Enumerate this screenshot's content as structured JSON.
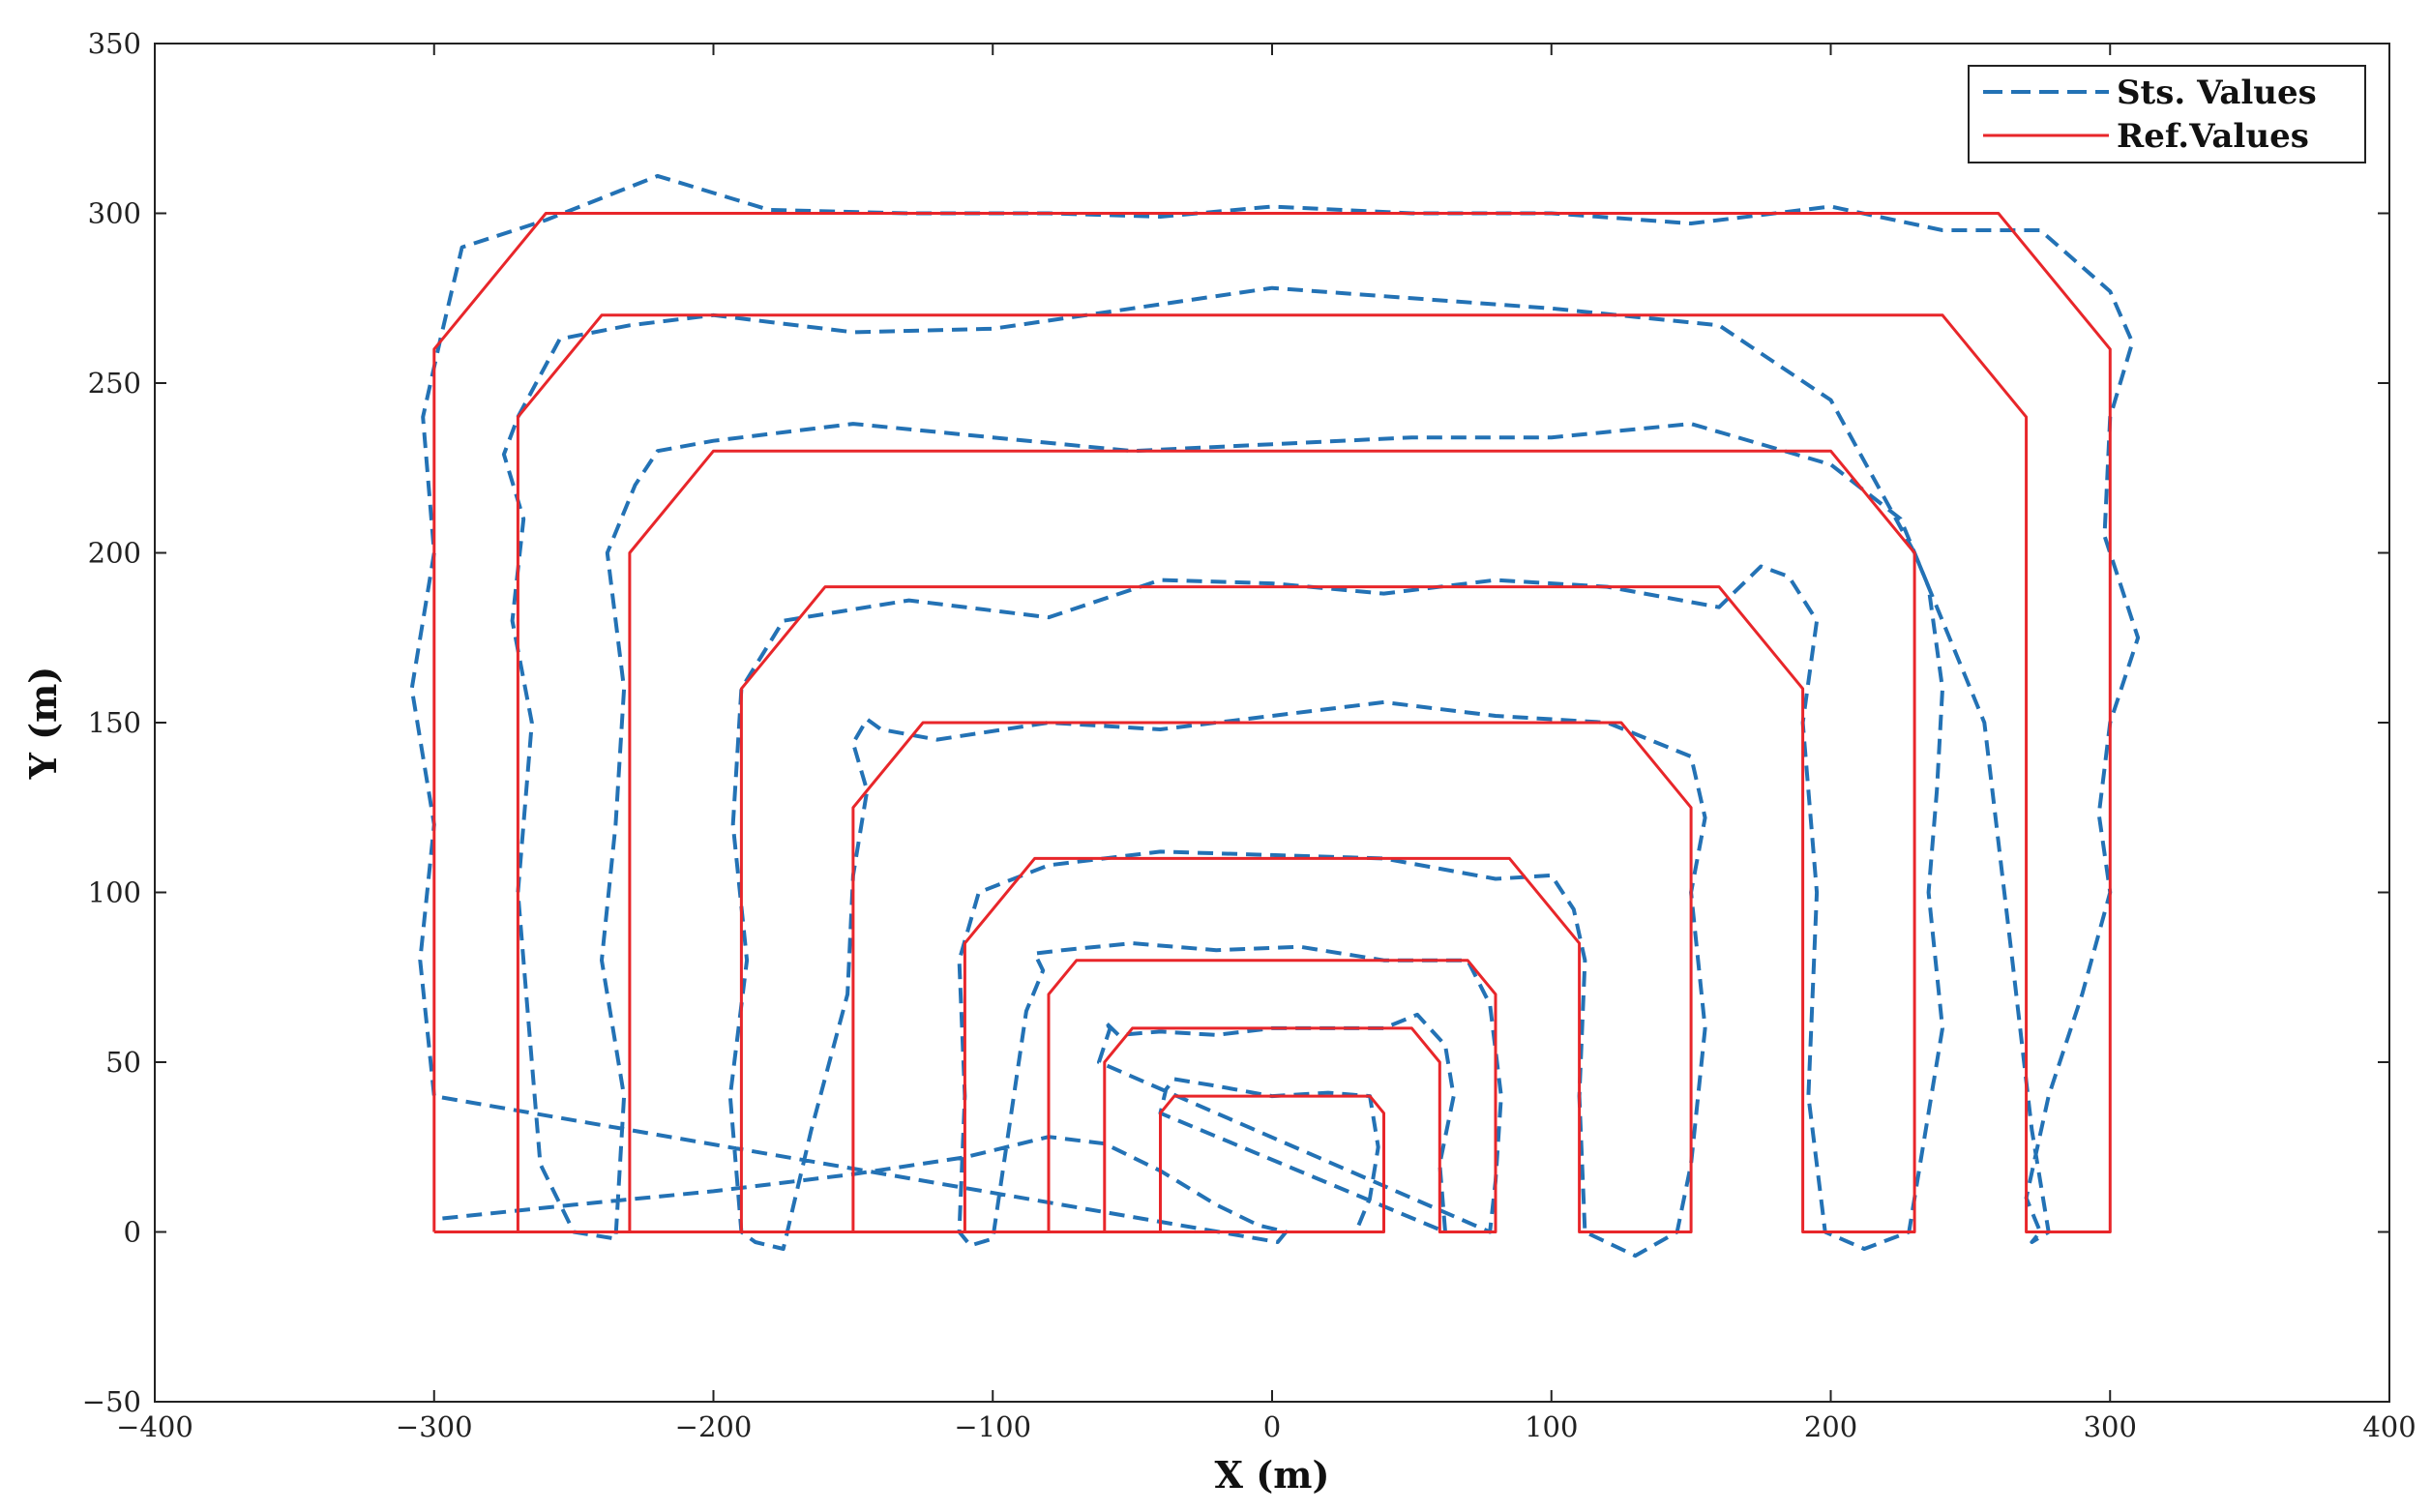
{
  "chart_data": {
    "type": "line",
    "title": "",
    "xlabel": "X (m)",
    "ylabel": "Y (m)",
    "xlim": [
      -400,
      400
    ],
    "ylim": [
      -50,
      350
    ],
    "xticks": [
      -400,
      -300,
      -200,
      -100,
      0,
      100,
      200,
      300,
      400
    ],
    "yticks": [
      -50,
      0,
      50,
      100,
      150,
      200,
      250,
      300,
      350
    ],
    "xtick_labels": [
      "−400",
      "−300",
      "−200",
      "−100",
      "0",
      "100",
      "200",
      "300",
      "400"
    ],
    "ytick_labels": [
      "−50",
      "0",
      "50",
      "100",
      "150",
      "200",
      "250",
      "300",
      "350"
    ],
    "grid": false,
    "legend_position": "top-right",
    "series": [
      {
        "name": "Sts. Values",
        "style": "dashed",
        "color": "#2372B5",
        "x": [
          -297,
          -250,
          -200,
          -150,
          -110,
          -80,
          -60,
          -40,
          -20,
          -5,
          5,
          2,
          -300,
          -305,
          -300,
          -308,
          -300,
          -304,
          -298,
          -290,
          -260,
          -220,
          -180,
          -130,
          -80,
          -40,
          0,
          50,
          100,
          150,
          200,
          240,
          275,
          300,
          308,
          300,
          298,
          310,
          300,
          296,
          300,
          290,
          278,
          270,
          275,
          272,
          278,
          272,
          265,
          255,
          230,
          200,
          160,
          100,
          50,
          0,
          -50,
          -100,
          -150,
          -200,
          -230,
          -255,
          -270,
          -275,
          -268,
          -272,
          -265,
          -270,
          -266,
          -262,
          -250,
          -235,
          -232,
          -240,
          -235,
          -232,
          -238,
          -228,
          -220,
          -200,
          -150,
          -100,
          -50,
          0,
          50,
          100,
          150,
          200,
          225,
          235,
          240,
          238,
          235,
          240,
          232,
          228,
          212,
          198,
          192,
          195,
          190,
          195,
          185,
          175,
          160,
          120,
          80,
          40,
          0,
          -40,
          -80,
          -130,
          -175,
          -190,
          -193,
          -188,
          -194,
          -190,
          -185,
          -175,
          -165,
          -152,
          -150,
          -145,
          -150,
          -145,
          -140,
          -120,
          -80,
          -40,
          0,
          40,
          80,
          120,
          150,
          155,
          150,
          155,
          150,
          145,
          130,
          112,
          110,
          112,
          108,
          100,
          80,
          40,
          0,
          -40,
          -80,
          -105,
          -112,
          -110,
          -112,
          -108,
          -100,
          -88,
          -82,
          -85,
          -75,
          -50,
          -20,
          10,
          40,
          70,
          78,
          82,
          80,
          78,
          -62,
          -58,
          -60,
          -55,
          -40,
          -20,
          0,
          20,
          40,
          52,
          62,
          65,
          60,
          62,
          -40,
          -38,
          -35,
          -20,
          0,
          20,
          35,
          38,
          35,
          30
        ],
        "y": [
          4,
          8,
          12,
          17,
          22,
          28,
          26,
          18,
          8,
          2,
          0,
          -3,
          40,
          80,
          120,
          160,
          200,
          240,
          262,
          290,
          298,
          311,
          301,
          300,
          300,
          299,
          302,
          300,
          300,
          297,
          302,
          295,
          295,
          277,
          262,
          240,
          205,
          175,
          150,
          123,
          100,
          70,
          40,
          10,
          0,
          -3,
          0,
          30,
          80,
          150,
          200,
          245,
          267,
          272,
          275,
          278,
          272,
          266,
          265,
          270,
          267,
          263,
          240,
          229,
          210,
          180,
          150,
          100,
          60,
          20,
          0,
          -2,
          40,
          80,
          120,
          160,
          200,
          220,
          230,
          233,
          238,
          234,
          230,
          232,
          234,
          234,
          238,
          226,
          210,
          190,
          160,
          130,
          100,
          60,
          20,
          0,
          -5,
          0,
          40,
          100,
          150,
          180,
          193,
          196,
          184,
          190,
          192,
          188,
          191,
          192,
          181,
          186,
          180,
          160,
          120,
          80,
          40,
          0,
          -3,
          -5,
          30,
          70,
          105,
          130,
          144,
          151,
          148,
          145,
          150,
          148,
          152,
          156,
          152,
          150,
          140,
          122,
          100,
          60,
          20,
          0,
          -7,
          0,
          40,
          80,
          95,
          105,
          104,
          110,
          111,
          112,
          108,
          100,
          80,
          40,
          0,
          -4,
          -2,
          65,
          77,
          82,
          83,
          85,
          83,
          84,
          80,
          80,
          67,
          40,
          15,
          0,
          50,
          60,
          62,
          58,
          59,
          58,
          60,
          60,
          60,
          64,
          55,
          40,
          20,
          0,
          35,
          42,
          45,
          43,
          40,
          41,
          40,
          25,
          10,
          0
        ]
      },
      {
        "name": "Ref.Values",
        "style": "solid",
        "color": "#E8262A",
        "x": [
          -300,
          -300,
          -260,
          260,
          300,
          300,
          270,
          270,
          240,
          -240,
          -270,
          -270,
          -230,
          -230,
          -200,
          200,
          230,
          230,
          190,
          190,
          160,
          -160,
          -190,
          -190,
          -150,
          -150,
          -125,
          125,
          150,
          150,
          110,
          110,
          85,
          -85,
          -110,
          -110,
          -80,
          -80,
          -70,
          70,
          80,
          80,
          60,
          60,
          50,
          -50,
          -60,
          -60,
          -40,
          -40,
          -35,
          35,
          40,
          40,
          -300
        ],
        "y": [
          0,
          260,
          300,
          300,
          260,
          0,
          0,
          240,
          270,
          270,
          240,
          0,
          0,
          200,
          230,
          230,
          200,
          0,
          0,
          160,
          190,
          190,
          160,
          0,
          0,
          125,
          150,
          150,
          125,
          0,
          0,
          85,
          110,
          110,
          85,
          0,
          0,
          70,
          80,
          80,
          70,
          0,
          0,
          50,
          60,
          60,
          50,
          0,
          0,
          35,
          40,
          40,
          35,
          0,
          0
        ]
      }
    ]
  }
}
